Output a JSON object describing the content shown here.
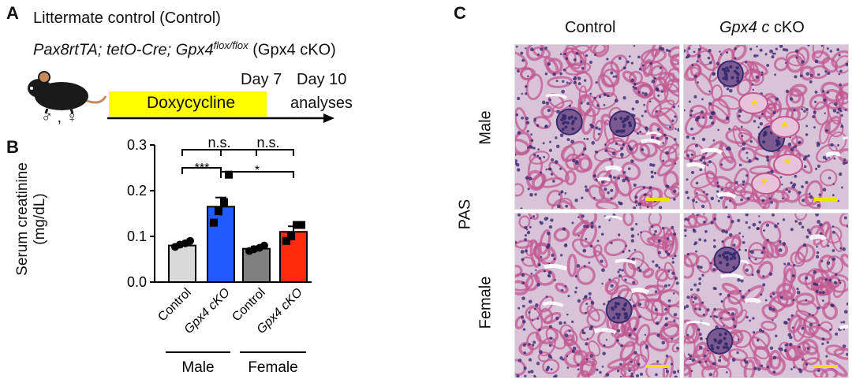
{
  "panel_a": {
    "letter": "A",
    "line1": "Littermate control (Control)",
    "line2_pre": "Pax8rtTA; tetO-Cre; Gpx4",
    "line2_sup": "flox/flox",
    "line2_post": " (Gpx4 cKO)",
    "day7": "Day 7",
    "day10": "Day 10",
    "drug": "Doxycycline",
    "analyses": "analyses",
    "sex_symbols": "♂ , ♀"
  },
  "panel_b": {
    "letter": "B",
    "ylabel_line1": "Serum creatinine",
    "ylabel_line2": "(mg/dL)",
    "yticks": [
      "0.0",
      "0.1",
      "0.2",
      "0.3"
    ],
    "sig_top_left": "n.s.",
    "sig_top_right": "n.s.",
    "sig_mid_left": "***",
    "sig_mid_right": "*",
    "group_male": "Male",
    "group_female": "Female"
  },
  "chart_data": {
    "type": "bar",
    "categories": [
      "Control",
      "Gpx4 cKO",
      "Control",
      "Gpx4 cKO"
    ],
    "values": [
      0.08,
      0.165,
      0.073,
      0.11
    ],
    "errors": [
      0.005,
      0.02,
      0.005,
      0.012
    ],
    "points": [
      [
        0.077,
        0.082,
        0.085,
        0.09
      ],
      [
        0.13,
        0.155,
        0.175,
        0.235
      ],
      [
        0.068,
        0.072,
        0.075,
        0.08
      ],
      [
        0.09,
        0.1,
        0.125,
        0.125
      ]
    ],
    "colors": [
      "#d9d9d9",
      "#1f5bff",
      "#808080",
      "#ff2a0a"
    ],
    "xlabel": "",
    "ylabel": "Serum creatinine (mg/dL)",
    "ylim": [
      0,
      0.3
    ],
    "groups": [
      "Male",
      "Female"
    ]
  },
  "panel_c": {
    "letter": "C",
    "col_control": "Control",
    "col_cko_italic": "Gpx4",
    "col_cko_rest": " cKO",
    "row_male": "Male",
    "row_female": "Female",
    "stain": "PAS",
    "star": "*",
    "colors": {
      "tissue_bg": "#d9c3d9",
      "tubule": "#c05890",
      "nucleus": "#3a2b70",
      "scale": "#f2e000"
    }
  }
}
